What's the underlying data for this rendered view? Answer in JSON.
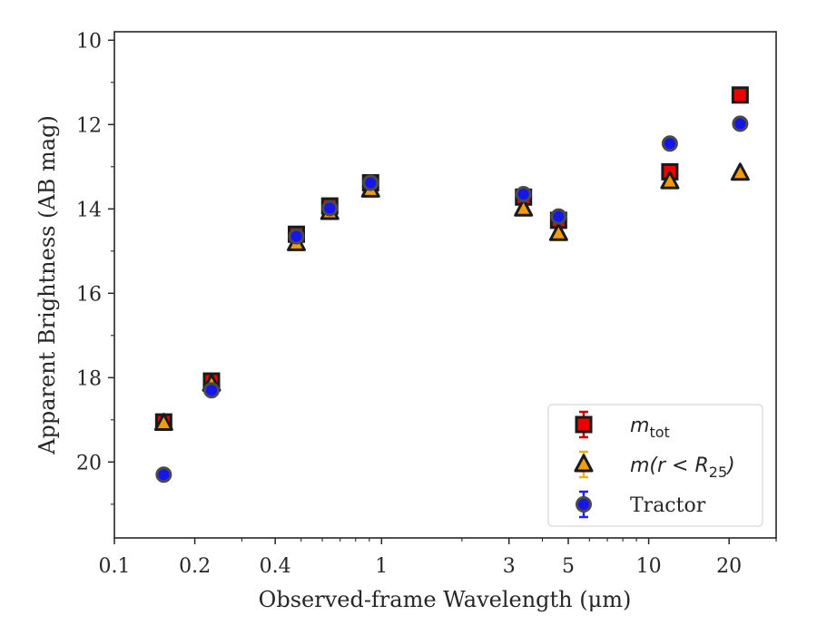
{
  "chart_data": {
    "type": "scatter",
    "xlabel": "Observed-frame Wavelength (μm)",
    "ylabel": "Apparent Brightness (AB mag)",
    "x_scale": "log",
    "xlim": [
      0.1,
      30
    ],
    "ylim": [
      21.8,
      9.8
    ],
    "x_ticks": [
      {
        "value": 0.1,
        "label": "0.1"
      },
      {
        "value": 0.2,
        "label": "0.2"
      },
      {
        "value": 0.4,
        "label": "0.4"
      },
      {
        "value": 1,
        "label": "1"
      },
      {
        "value": 3,
        "label": "3"
      },
      {
        "value": 5,
        "label": "5"
      },
      {
        "value": 10,
        "label": "10"
      },
      {
        "value": 20,
        "label": "20"
      }
    ],
    "y_ticks": [
      {
        "value": 10,
        "label": "10"
      },
      {
        "value": 12,
        "label": "12"
      },
      {
        "value": 14,
        "label": "14"
      },
      {
        "value": 16,
        "label": "16"
      },
      {
        "value": 18,
        "label": "18"
      },
      {
        "value": 20,
        "label": "20"
      }
    ],
    "grid": false,
    "legend_position": "bottom-right",
    "series": [
      {
        "name": "m_tot",
        "label_parts": {
          "base": "m",
          "sub": "tot"
        },
        "marker": "square",
        "color": "#ee0000",
        "errorbar_color": "#cc0000",
        "x": [
          0.153,
          0.231,
          0.48,
          0.64,
          0.91,
          3.4,
          4.6,
          12.0,
          22.0
        ],
        "y": [
          19.05,
          18.08,
          14.6,
          13.93,
          13.38,
          13.72,
          14.27,
          13.12,
          11.3
        ]
      },
      {
        "name": "m(r < R25)",
        "label_parts": {
          "base": "m(r < R",
          "sub": "25",
          "tail": ")"
        },
        "marker": "triangle",
        "color": "#f29b0b",
        "errorbar_color": "#f0b020",
        "x": [
          0.153,
          0.231,
          0.48,
          0.64,
          0.91,
          3.4,
          4.6,
          12.0,
          22.0
        ],
        "y": [
          19.08,
          18.15,
          14.82,
          14.08,
          13.55,
          14.0,
          14.58,
          13.35,
          13.15
        ]
      },
      {
        "name": "Tractor",
        "marker": "circle",
        "color": "#1515ee",
        "errorbar_color": "#2222ee",
        "x": [
          0.153,
          0.231,
          0.48,
          0.64,
          0.91,
          3.4,
          4.6,
          12.0,
          22.0
        ],
        "y": [
          20.3,
          18.3,
          14.65,
          13.98,
          13.38,
          13.65,
          14.18,
          12.45,
          11.98
        ]
      }
    ]
  }
}
